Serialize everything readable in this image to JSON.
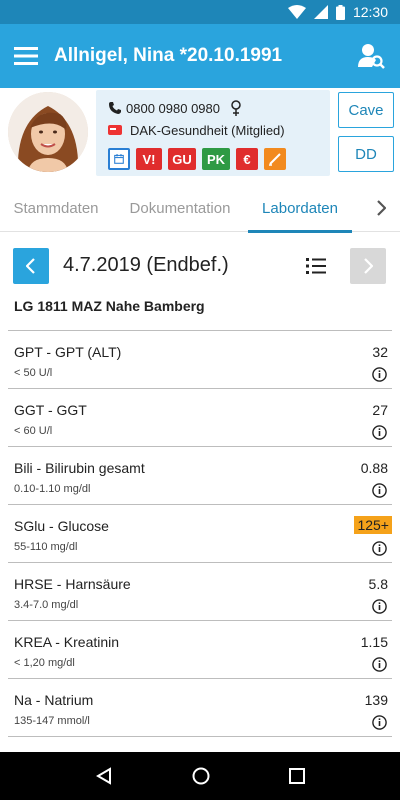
{
  "status_bar": {
    "time": "12:30"
  },
  "app_bar": {
    "title": "Allnigel, Nina *20.10.1991"
  },
  "patient": {
    "phone": "0800 0980 0980",
    "insurance": "DAK-Gesundheit (Mitglied)",
    "badges": {
      "v": "V!",
      "gu": "GU",
      "pk": "PK",
      "euro": "€"
    }
  },
  "buttons": {
    "cave": "Cave",
    "dd": "DD"
  },
  "tabs": [
    {
      "label": "Stammdaten"
    },
    {
      "label": "Dokumentation"
    },
    {
      "label": "Labordaten"
    }
  ],
  "date_nav": {
    "date": "4.7.2019 (Endbef.)"
  },
  "lab": {
    "name": "LG 1811 MAZ Nahe Bamberg"
  },
  "results": [
    {
      "name": "GPT - GPT (ALT)",
      "range": "< 50 U/l",
      "value": "32"
    },
    {
      "name": "GGT - GGT",
      "range": "< 60 U/l",
      "value": "27"
    },
    {
      "name": "Bili - Bilirubin gesamt",
      "range": "0.10-1.10 mg/dl",
      "value": "0.88"
    },
    {
      "name": "SGlu - Glucose",
      "range": "55-110 mg/dl",
      "value": "125+"
    },
    {
      "name": "HRSE - Harnsäure",
      "range": "3.4-7.0 mg/dl",
      "value": "5.8"
    },
    {
      "name": "KREA - Kreatinin",
      "range": "< 1,20 mg/dl",
      "value": "1.15"
    },
    {
      "name": "Na - Natrium",
      "range": "135-147 mmol/l",
      "value": "139"
    }
  ],
  "colors": {
    "primary": "#2aa4dd",
    "status_bar": "#1e86b8",
    "high_value": "#f5a21a"
  }
}
